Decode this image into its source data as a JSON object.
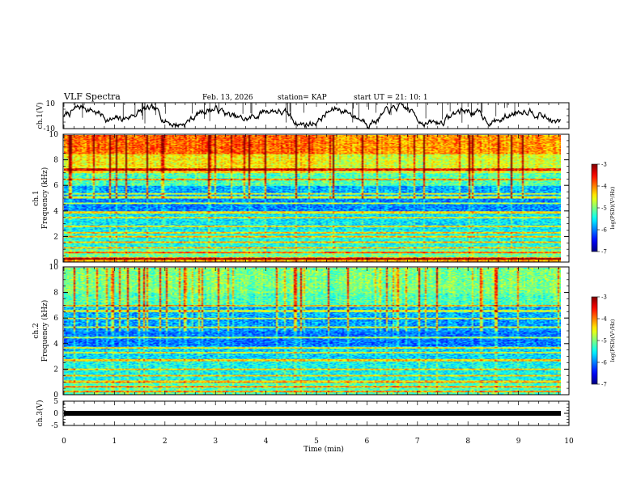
{
  "header": {
    "title": "VLF Spectra",
    "date": "Feb. 13, 2026",
    "station": "station= KAP",
    "start": "start  UT  =   21: 10: 1"
  },
  "colors": {
    "axis": "#000000",
    "bg": "#ffffff"
  },
  "chart_data": [
    {
      "type": "line",
      "title": "ch.1(V)",
      "ylabel": "ch.1(V)",
      "ylim": [
        -10,
        10
      ],
      "yticks": [
        "10",
        "-10"
      ],
      "xlim": [
        0,
        9.83
      ],
      "seed": 7
    },
    {
      "type": "heatmap",
      "ylabel_top": "ch.1",
      "ylabel": "Frequency (kHz)",
      "ylim": [
        0,
        10
      ],
      "yticks": [
        "0",
        "2",
        "4",
        "6",
        "8",
        "10"
      ],
      "xlim": [
        0,
        9.83
      ],
      "colorbar": {
        "label": "log(PSD)(V²/Hz)",
        "ticks": [
          "-3",
          "-4",
          "-5",
          "-6",
          "-7"
        ],
        "range": [
          -7,
          -3
        ]
      },
      "seed": 11
    },
    {
      "type": "heatmap",
      "ylabel_top": "ch.2",
      "ylabel": "Frequency (kHz)",
      "ylim": [
        0,
        10
      ],
      "yticks": [
        "0",
        "2",
        "4",
        "6",
        "8",
        "10"
      ],
      "xlim": [
        0,
        9.83
      ],
      "colorbar": {
        "label": "log(PSD)(V²/Hz)",
        "ticks": [
          "-3",
          "-4",
          "-5",
          "-6",
          "-7"
        ],
        "range": [
          -7,
          -3
        ]
      },
      "seed": 23
    },
    {
      "type": "line",
      "ylabel": "ch.3(V)",
      "ylim": [
        -5,
        5
      ],
      "yticks": [
        "5",
        "0",
        "-5"
      ],
      "xlim": [
        0,
        9.83
      ],
      "constant_value": 0
    }
  ],
  "xaxis": {
    "label": "Time  (min)",
    "xlim": [
      0,
      10
    ],
    "ticks": [
      "0",
      "1",
      "2",
      "3",
      "4",
      "5",
      "6",
      "7",
      "8",
      "9",
      "10"
    ]
  }
}
